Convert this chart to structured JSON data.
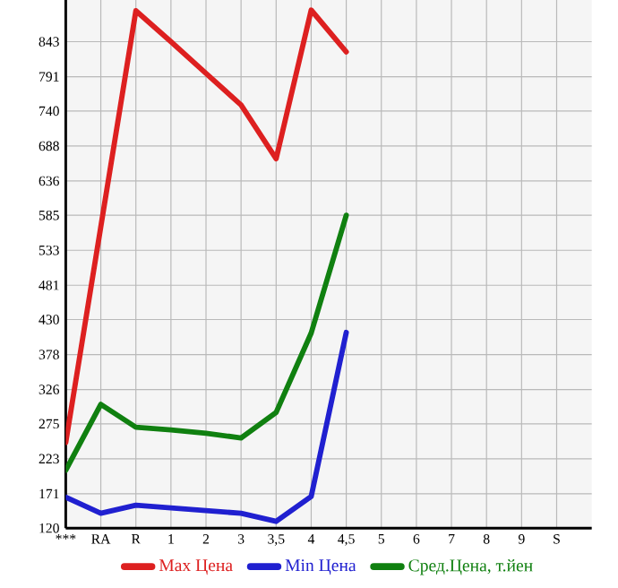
{
  "chart_data": {
    "type": "line",
    "categories": [
      "***",
      "RA",
      "R",
      "1",
      "2",
      "3",
      "3,5",
      "4",
      "4,5",
      "5",
      "6",
      "7",
      "8",
      "9",
      "S"
    ],
    "series": [
      {
        "name": "Max Цена",
        "color": "#dd2020",
        "values": [
          247,
          568,
          889,
          843,
          796,
          749,
          669,
          890,
          828,
          null,
          null,
          null,
          null,
          null,
          null
        ]
      },
      {
        "name": "Min Цена",
        "color": "#2020d0",
        "values": [
          166,
          142,
          154,
          150,
          146,
          142,
          130,
          167,
          411,
          null,
          null,
          null,
          null,
          null,
          null
        ]
      },
      {
        "name": "Сред.Цена, т.йен",
        "color": "#108010",
        "values": [
          206,
          304,
          270,
          266,
          261,
          254,
          292,
          410,
          585,
          null,
          null,
          null,
          null,
          null,
          null
        ]
      }
    ],
    "ylim": [
      120,
      905
    ],
    "yticks": [
      120,
      171,
      223,
      275,
      326,
      378,
      430,
      481,
      533,
      585,
      636,
      688,
      740,
      791,
      843
    ],
    "grid": true,
    "legend": "bottom",
    "marker": "none",
    "line_style": "solid"
  }
}
